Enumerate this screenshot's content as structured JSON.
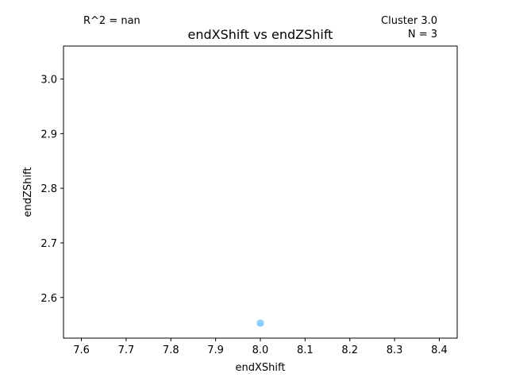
{
  "annotations": {
    "r_squared": "R^2 = nan",
    "cluster": "Cluster 3.0",
    "n": "N = 3"
  },
  "chart_data": {
    "type": "scatter",
    "title": "endXShift vs endZShift",
    "xlabel": "endXShift",
    "ylabel": "endZShift",
    "xlim": [
      7.56,
      8.44
    ],
    "ylim": [
      2.5255,
      3.0605
    ],
    "xticks": [
      "7.6",
      "7.7",
      "7.8",
      "7.9",
      "8.0",
      "8.1",
      "8.2",
      "8.3",
      "8.4"
    ],
    "yticks": [
      "2.6",
      "2.7",
      "2.8",
      "2.9",
      "3.0"
    ],
    "grid": false,
    "point_color": "#87cefa",
    "series": [
      {
        "x": [
          8.0,
          8.0,
          8.0
        ],
        "y": [
          2.553,
          2.553,
          2.553
        ]
      }
    ]
  }
}
